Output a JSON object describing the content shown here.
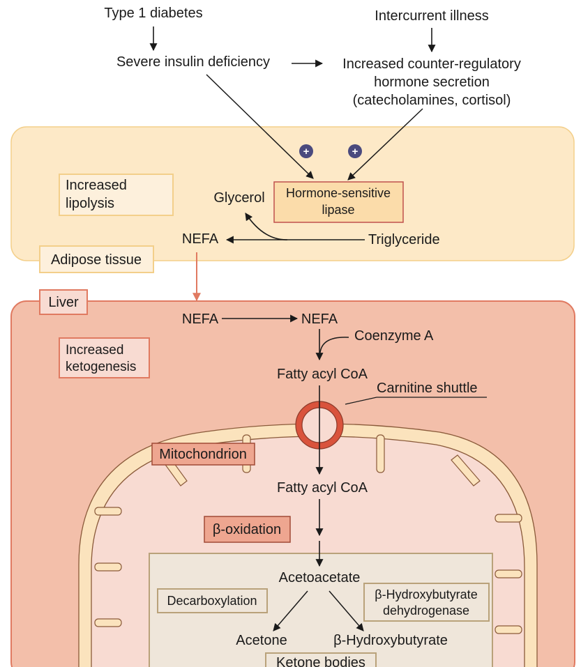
{
  "top": {
    "type1_diabetes": "Type 1 diabetes",
    "intercurrent_illness": "Intercurrent illness",
    "severe_insulin_deficiency": "Severe insulin deficiency",
    "counter_reg_line1": "Increased counter-regulatory",
    "counter_reg_line2": "hormone secretion",
    "counter_reg_line3": "(catecholamines, cortisol)"
  },
  "adipose": {
    "increased_lipolysis_line1": "Increased",
    "increased_lipolysis_line2": "lipolysis",
    "glycerol": "Glycerol",
    "hsl_line1": "Hormone-sensitive",
    "hsl_line2": "lipase",
    "nefa": "NEFA",
    "triglyceride": "Triglyceride",
    "tissue_label": "Adipose tissue",
    "stimulation_symbol": "+"
  },
  "liver": {
    "label": "Liver",
    "nefa_in": "NEFA",
    "nefa_out": "NEFA",
    "coenzyme_a": "Coenzyme A",
    "increased_ketogenesis_line1": "Increased",
    "increased_ketogenesis_line2": "ketogenesis",
    "fatty_acyl_coa_cytosol": "Fatty acyl CoA",
    "carnitine_shuttle": "Carnitine shuttle",
    "mitochondrion": "Mitochondrion",
    "fatty_acyl_coa_mito": "Fatty acyl CoA",
    "beta_oxidation": "β-oxidation"
  },
  "ketone": {
    "acetoacetate": "Acetoacetate",
    "decarboxylation": "Decarboxylation",
    "bhb_dehydrogenase_line1": "β-Hydroxybutyrate",
    "bhb_dehydrogenase_line2": "dehydrogenase",
    "acetone": "Acetone",
    "beta_hydroxybutyrate": "β-Hydroxybutyrate",
    "ketone_bodies": "Ketone bodies"
  },
  "colors": {
    "adipose_fill": "#fde9c7",
    "adipose_stroke": "#f3cf8a",
    "liver_fill": "#f3bfaa",
    "liver_stroke": "#e07a61",
    "mito_fill": "#f8dbd2",
    "mito_membrane": "#fbe3bd",
    "ketone_box_fill": "#efe6da",
    "shuttle_ring": "#d9533c",
    "plus_circle": "#4a4a7e",
    "transfer_arrow": "#e07a61"
  }
}
